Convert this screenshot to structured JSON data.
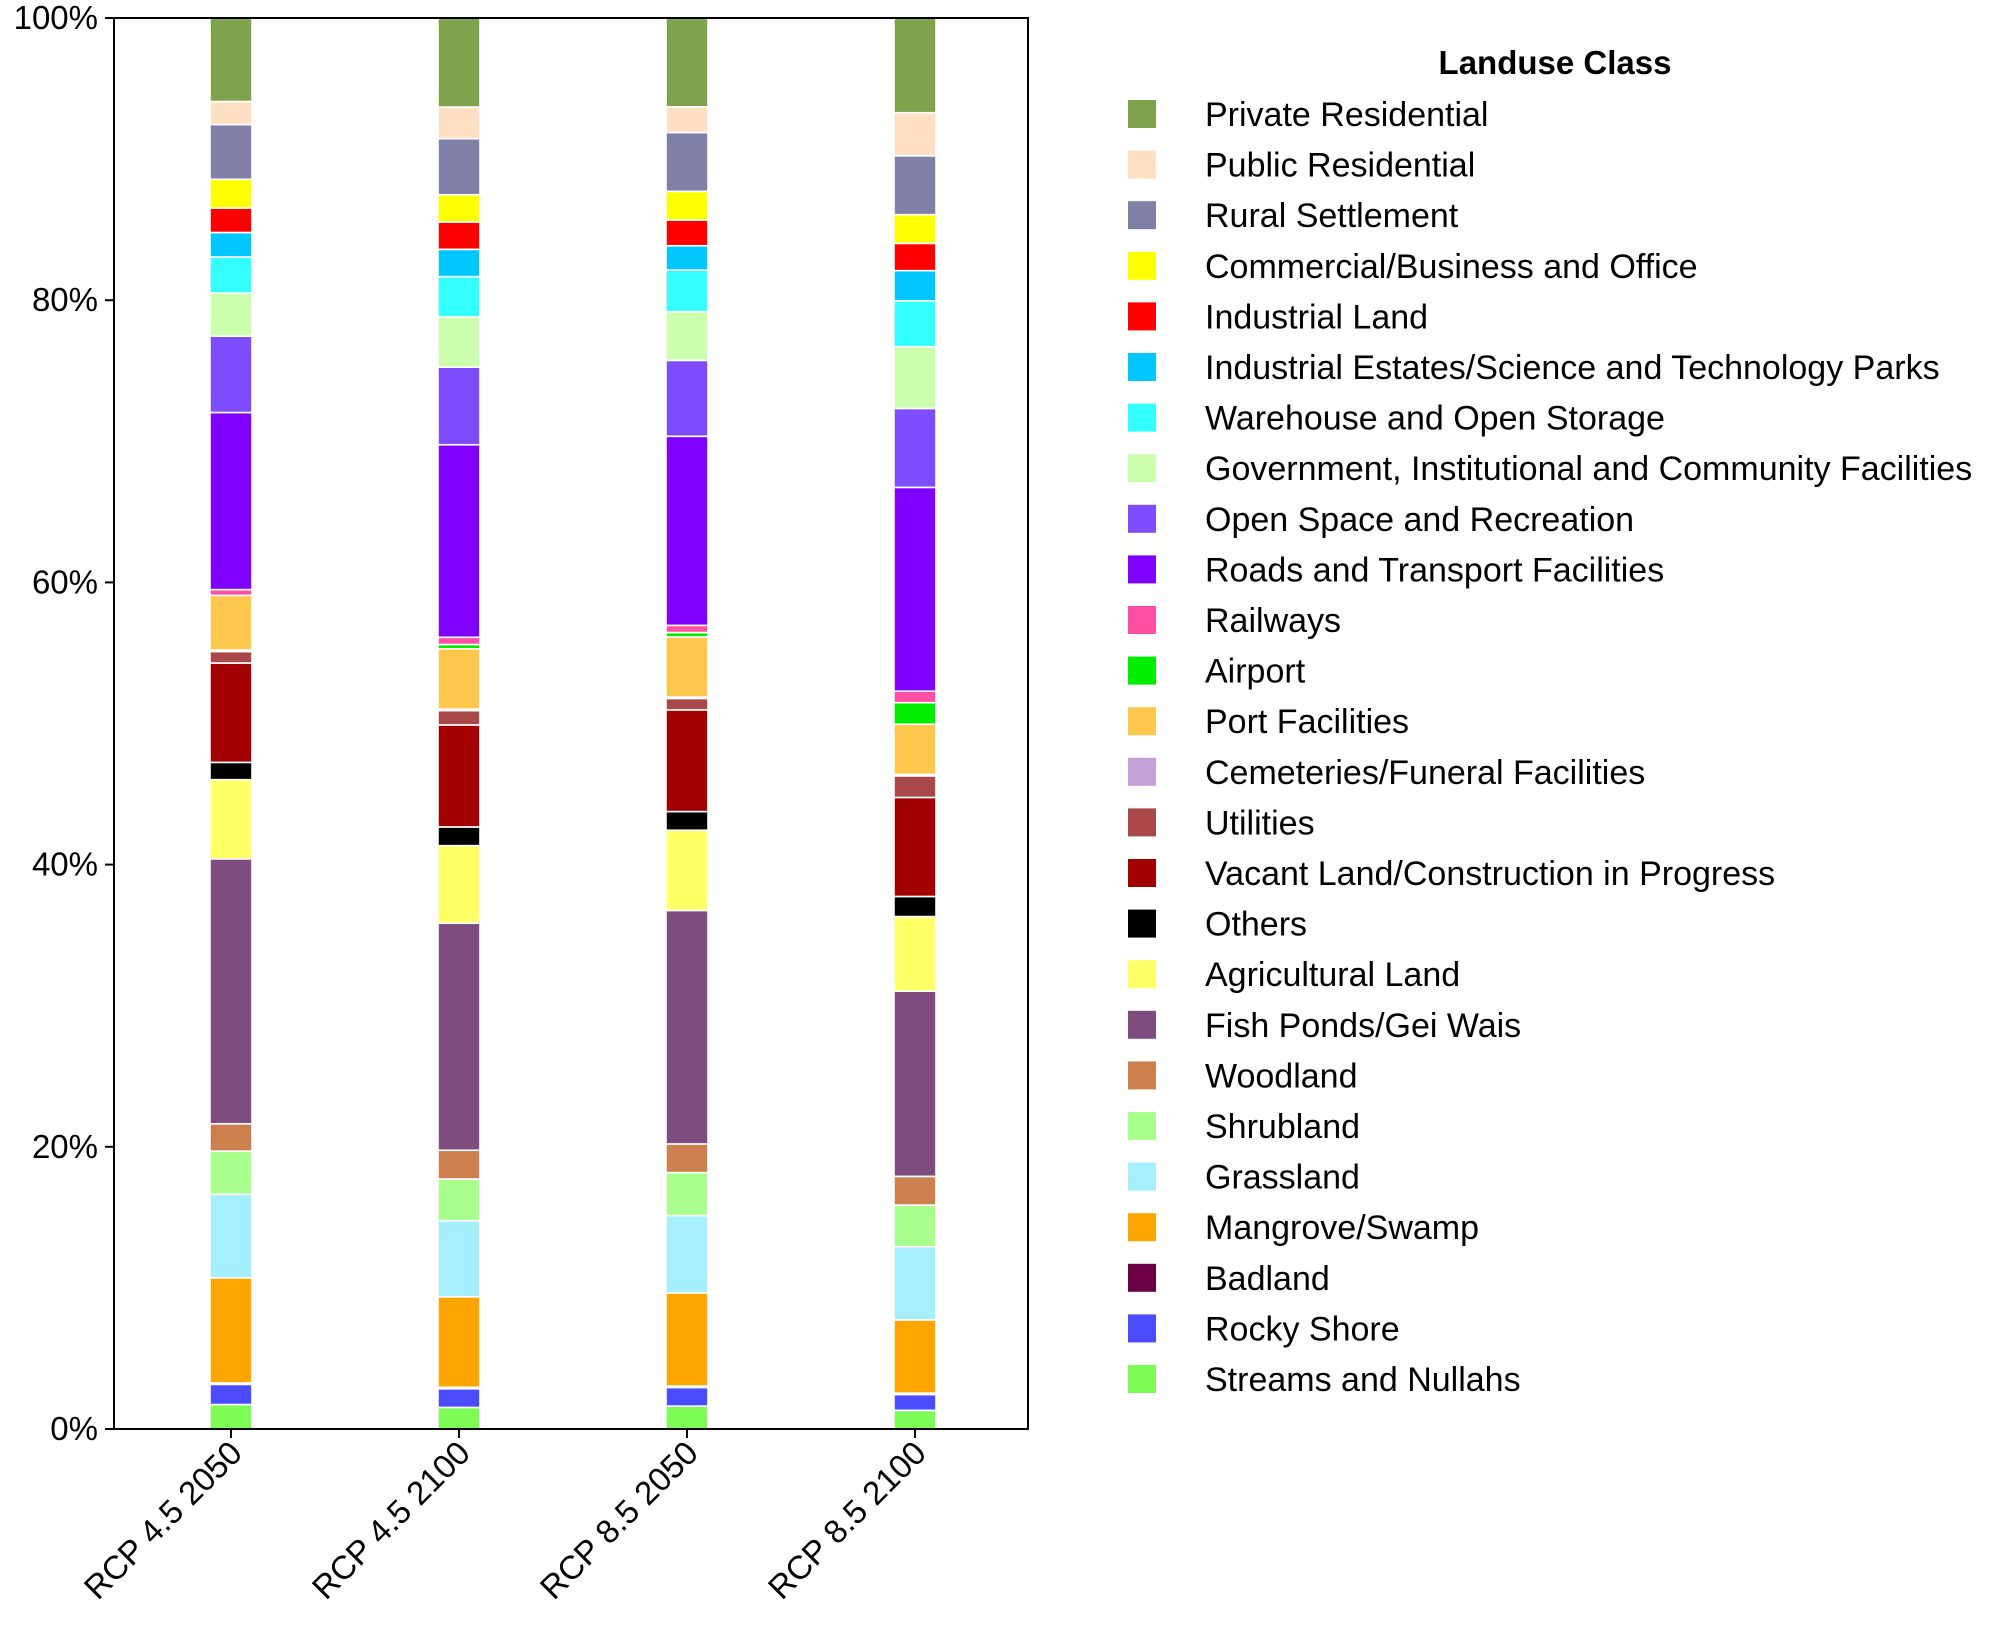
{
  "chart_data": {
    "type": "bar",
    "stacked": true,
    "normalized": true,
    "title": "",
    "xlabel": "",
    "ylabel": "",
    "ylim": [
      0,
      100
    ],
    "yticks": [
      "0%",
      "20%",
      "40%",
      "60%",
      "80%",
      "100%"
    ],
    "categories": [
      "RCP 4.5 2050",
      "RCP 4.5 2100",
      "RCP 8.5 2050",
      "RCP 8.5 2100"
    ],
    "legend_title": "Landuse Class",
    "legend_position": "right",
    "series": [
      {
        "name": "Streams and Nullahs",
        "color": "#7cfc55",
        "values": [
          1.7,
          1.5,
          1.6,
          1.3
        ]
      },
      {
        "name": "Rocky Shore",
        "color": "#4b4bff",
        "values": [
          1.4,
          1.3,
          1.3,
          1.1
        ]
      },
      {
        "name": "Badland",
        "color": "#6b0046",
        "values": [
          0.1,
          0.1,
          0.1,
          0.1
        ]
      },
      {
        "name": "Mangrove/Swamp",
        "color": "#ffa500",
        "values": [
          7.3,
          6.3,
          6.5,
          5.1
        ]
      },
      {
        "name": "Grassland",
        "color": "#a6efff",
        "values": [
          5.8,
          5.3,
          5.4,
          5.1
        ]
      },
      {
        "name": "Shrubland",
        "color": "#a8ff8c",
        "values": [
          3.0,
          2.9,
          3.0,
          2.9
        ]
      },
      {
        "name": "Woodland",
        "color": "#cd7f4d",
        "values": [
          1.9,
          2.0,
          2.0,
          2.0
        ]
      },
      {
        "name": "Fish Ponds/Gei Wais",
        "color": "#7f4c7f",
        "values": [
          18.4,
          15.8,
          16.3,
          12.9
        ]
      },
      {
        "name": "Agricultural Land",
        "color": "#ffff66",
        "values": [
          5.5,
          5.4,
          5.6,
          5.2
        ]
      },
      {
        "name": "Others",
        "color": "#000000",
        "values": [
          1.2,
          1.3,
          1.3,
          1.4
        ]
      },
      {
        "name": "Vacant Land/Construction in Progress",
        "color": "#a30000",
        "values": [
          6.9,
          7.1,
          7.1,
          6.9
        ]
      },
      {
        "name": "Utilities",
        "color": "#a84848",
        "values": [
          0.8,
          1.0,
          0.8,
          1.5
        ]
      },
      {
        "name": "Cemeteries/Funeral Facilities",
        "color": "#c3a0d8",
        "values": [
          0.1,
          0.1,
          0.1,
          0.1
        ]
      },
      {
        "name": "Port Facilities",
        "color": "#ffc84d",
        "values": [
          3.8,
          4.2,
          4.2,
          3.5
        ]
      },
      {
        "name": "Airport",
        "color": "#00ee00",
        "values": [
          0.0,
          0.3,
          0.3,
          1.5
        ]
      },
      {
        "name": "Railways",
        "color": "#ff4fa4",
        "values": [
          0.4,
          0.5,
          0.5,
          0.8
        ]
      },
      {
        "name": "Roads and Transport Facilities",
        "color": "#8000ff",
        "values": [
          12.3,
          13.4,
          13.2,
          14.2
        ]
      },
      {
        "name": "Open Space and Recreation",
        "color": "#7d4cff",
        "values": [
          5.3,
          5.4,
          5.3,
          5.5
        ]
      },
      {
        "name": "Government, Institutional and Community Facilities",
        "color": "#ccffad",
        "values": [
          3.0,
          3.5,
          3.4,
          4.3
        ]
      },
      {
        "name": "Warehouse and Open Storage",
        "color": "#33ffff",
        "values": [
          2.5,
          2.8,
          2.9,
          3.2
        ]
      },
      {
        "name": "Industrial Estates/Science and Technology Parks",
        "color": "#00c8ff",
        "values": [
          1.7,
          1.9,
          1.7,
          2.1
        ]
      },
      {
        "name": "Industrial Land",
        "color": "#ff0000",
        "values": [
          1.7,
          1.9,
          1.8,
          1.9
        ]
      },
      {
        "name": "Commercial/Business and Office",
        "color": "#ffff00",
        "values": [
          2.0,
          1.9,
          2.0,
          2.0
        ]
      },
      {
        "name": "Rural Settlement",
        "color": "#7f7fa8",
        "values": [
          3.8,
          3.9,
          4.1,
          4.1
        ]
      },
      {
        "name": "Public Residential",
        "color": "#ffdfc4",
        "values": [
          1.6,
          2.2,
          1.8,
          3.0
        ]
      },
      {
        "name": "Private Residential",
        "color": "#7fa34c",
        "values": [
          5.8,
          6.2,
          6.2,
          6.6
        ]
      }
    ]
  }
}
